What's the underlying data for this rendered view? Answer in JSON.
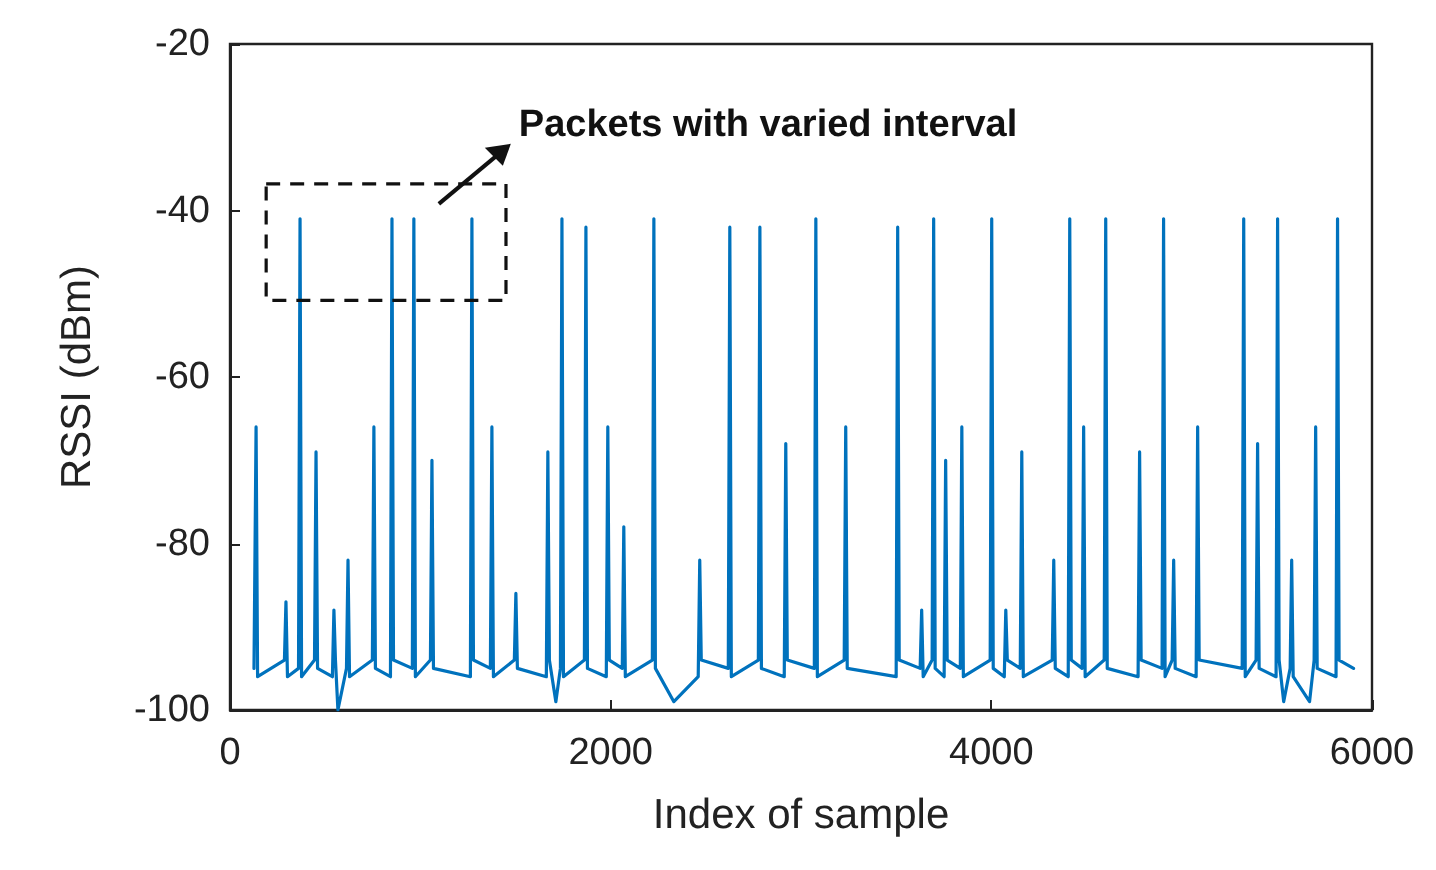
{
  "chart_data": {
    "type": "line",
    "xlabel": "Index of sample",
    "ylabel": "RSSI (dBm)",
    "annotations": [
      "Packets with varied interval"
    ],
    "xlim": [
      0,
      6000
    ],
    "xticks": [
      0,
      2000,
      4000,
      6000
    ],
    "ylim": [
      -100,
      -20
    ],
    "yticks": [
      -100,
      -80,
      -60,
      -40,
      -20
    ],
    "grid": false,
    "marker": "none",
    "line_style": "solid",
    "series": [
      {
        "color": "#0072bd",
        "x": [
          126,
          137,
          145,
          286,
          294,
          302,
          360,
          368,
          376,
          444,
          452,
          460,
          538,
          546,
          554,
          567,
          612,
          620,
          628,
          748,
          756,
          764,
          843,
          851,
          859,
          958,
          966,
          974,
          1053,
          1061,
          1069,
          1263,
          1271,
          1279,
          1368,
          1376,
          1384,
          1494,
          1502,
          1510,
          1662,
          1670,
          1678,
          1712,
          1736,
          1744,
          1752,
          1862,
          1870,
          1878,
          1977,
          1985,
          1993,
          2061,
          2069,
          2077,
          2219,
          2227,
          2235,
          2332,
          2460,
          2468,
          2476,
          2618,
          2626,
          2634,
          2776,
          2784,
          2792,
          2912,
          2920,
          2928,
          3070,
          3078,
          3086,
          3227,
          3235,
          3243,
          3500,
          3508,
          3516,
          3626,
          3634,
          3642,
          3689,
          3697,
          3705,
          3752,
          3760,
          3768,
          3837,
          3845,
          3853,
          3994,
          4002,
          4010,
          4068,
          4076,
          4084,
          4152,
          4160,
          4168,
          4320,
          4328,
          4336,
          4404,
          4412,
          4420,
          4477,
          4485,
          4493,
          4593,
          4601,
          4609,
          4771,
          4779,
          4787,
          4897,
          4905,
          4913,
          4950,
          4958,
          4966,
          5076,
          5084,
          5092,
          5318,
          5326,
          5334,
          5391,
          5399,
          5407,
          5496,
          5504,
          5512,
          5536,
          5570,
          5578,
          5586,
          5672,
          5696,
          5704,
          5712,
          5811,
          5819,
          5827,
          5903
        ],
        "values": [
          -95,
          -66,
          -96,
          -94,
          -87,
          -96,
          -95,
          -41,
          -96,
          -94,
          -69,
          -95,
          -96,
          -88,
          -94,
          -100,
          -95,
          -82,
          -96,
          -94,
          -66,
          -95,
          -96,
          -41,
          -94,
          -95,
          -41,
          -96,
          -94,
          -70,
          -95,
          -96,
          -41,
          -94,
          -95,
          -66,
          -96,
          -94,
          -86,
          -95,
          -96,
          -69,
          -94,
          -99,
          -95,
          -41,
          -96,
          -94,
          -42,
          -95,
          -96,
          -66,
          -94,
          -95,
          -78,
          -96,
          -94,
          -41,
          -95,
          -99,
          -96,
          -82,
          -94,
          -95,
          -42,
          -96,
          -94,
          -42,
          -95,
          -96,
          -68,
          -94,
          -95,
          -41,
          -96,
          -94,
          -66,
          -95,
          -96,
          -42,
          -94,
          -95,
          -88,
          -96,
          -94,
          -41,
          -95,
          -96,
          -70,
          -94,
          -95,
          -66,
          -96,
          -94,
          -41,
          -95,
          -96,
          -88,
          -94,
          -95,
          -69,
          -96,
          -94,
          -82,
          -95,
          -96,
          -41,
          -94,
          -95,
          -66,
          -96,
          -94,
          -41,
          -95,
          -96,
          -69,
          -94,
          -95,
          -41,
          -96,
          -94,
          -82,
          -95,
          -96,
          -66,
          -94,
          -95,
          -41,
          -96,
          -94,
          -68,
          -95,
          -96,
          -41,
          -94,
          -99,
          -95,
          -82,
          -96,
          -99,
          -94,
          -66,
          -95,
          -96,
          -41,
          -94,
          -95
        ]
      }
    ]
  }
}
